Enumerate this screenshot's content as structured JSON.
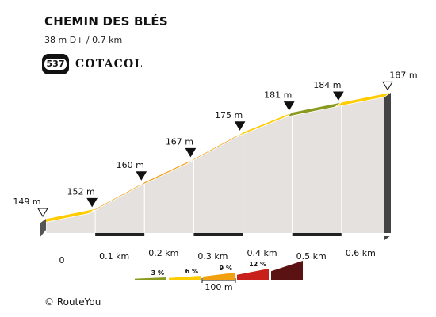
{
  "header": {
    "title": "CHEMIN DES BLÉS",
    "subtitle": "38 m D+ / 0.7 km",
    "logo_badge": "537",
    "logo_text": "COTACOL"
  },
  "credit": "© RouteYou",
  "colors": {
    "0-3": "#8a9a1e",
    "3-6": "#ffcc00",
    "6-9": "#f0a010",
    "9-12": "#c8201a",
    "12+": "#5a1212",
    "side": "#e5e1de",
    "base": "#555555"
  },
  "chart_data": {
    "type": "area",
    "title": "CHEMIN DES BLÉS",
    "x_unit": "km",
    "y_unit": "m",
    "x_tick_labels": [
      "0",
      "0.1 km",
      "0.2 km",
      "0.3 km",
      "0.4 km",
      "0.5 km",
      "0.6 km"
    ],
    "points": [
      {
        "km": 0.0,
        "elev": 149,
        "label": "149 m",
        "marker": "open"
      },
      {
        "km": 0.1,
        "elev": 152,
        "label": "152 m",
        "marker": "filled"
      },
      {
        "km": 0.2,
        "elev": 160,
        "label": "160 m",
        "marker": "filled"
      },
      {
        "km": 0.3,
        "elev": 167,
        "label": "167 m",
        "marker": "filled"
      },
      {
        "km": 0.4,
        "elev": 175,
        "label": "175 m",
        "marker": "filled"
      },
      {
        "km": 0.5,
        "elev": 181,
        "label": "181 m",
        "marker": "filled"
      },
      {
        "km": 0.6,
        "elev": 184,
        "label": "184 m",
        "marker": "filled"
      },
      {
        "km": 0.7,
        "elev": 187,
        "label": "187 m",
        "marker": "open"
      }
    ],
    "segment_classes": [
      "3-6",
      "6-9",
      "6-9",
      "6-9",
      "3-6",
      "0-3",
      "3-6"
    ],
    "legend": {
      "items": [
        {
          "label": "3 %",
          "class": "0-3"
        },
        {
          "label": "6 %",
          "class": "3-6"
        },
        {
          "label": "9 %",
          "class": "6-9"
        },
        {
          "label": "12 %",
          "class": "9-12"
        },
        {
          "label": "",
          "class": "12+"
        }
      ],
      "scale_label": "100 m"
    }
  }
}
